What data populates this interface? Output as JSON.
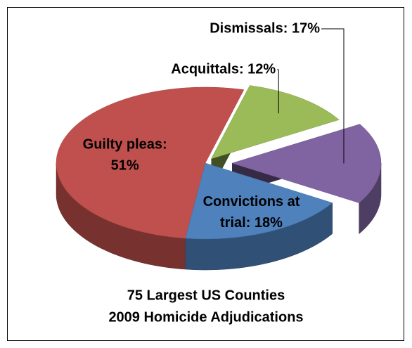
{
  "chart_data": {
    "type": "pie3d",
    "title": "75 Largest US Counties",
    "subtitle": "2009 Homicide Adjudications",
    "values": [
      51,
      18,
      17,
      12
    ],
    "value_labels": [
      "Guilty pleas: 51%",
      "Convictions at trial: 18%",
      "Dismissals: 17%",
      "Acquittals: 12%"
    ],
    "colors": [
      "#c0504d",
      "#4f81bd",
      "#8064a2",
      "#9bbb59"
    ],
    "exploded": [
      false,
      false,
      true,
      true
    ]
  }
}
